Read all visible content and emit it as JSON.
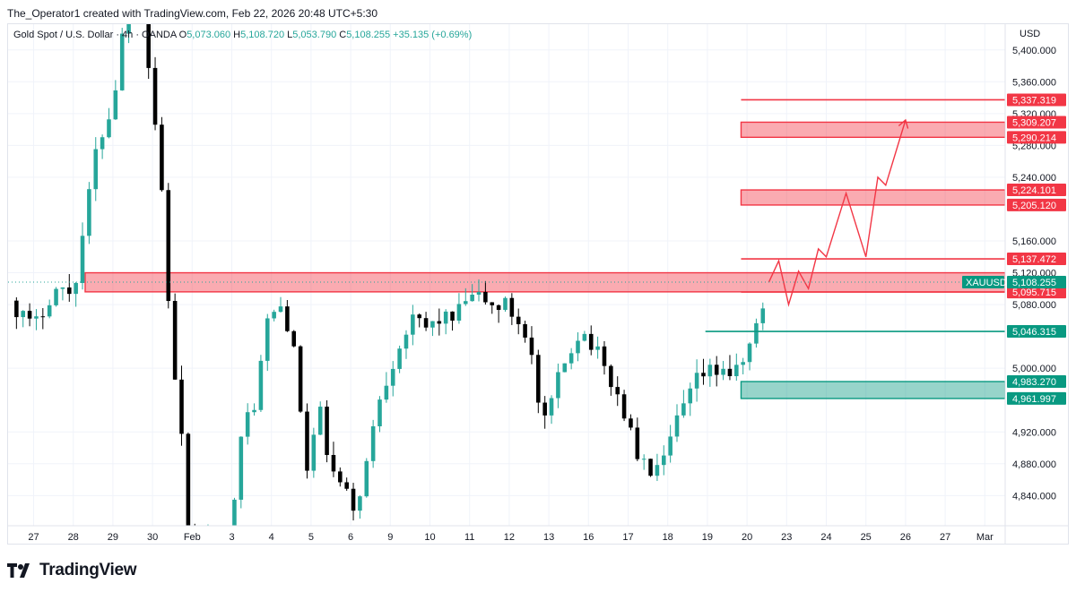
{
  "header": {
    "credit": "The_Operator1 created with TradingView.com, Feb 22, 2026 20:48 UTC+5:30"
  },
  "footer": {
    "logo": "TradingView"
  },
  "colors": {
    "up": "#26a69a",
    "down": "#000000",
    "resistance": "#f23645",
    "support": "#089981",
    "grid": "#f0f3fa",
    "axis_text": "#131722"
  },
  "chart_data": {
    "type": "candlestick",
    "legend": {
      "symbol": "Gold Spot / U.S. Dollar · 4h · OANDA",
      "open_label": "O",
      "open": "5,073.060",
      "high_label": "H",
      "high": "5,108.720",
      "low_label": "L",
      "low": "5,053.790",
      "close_label": "C",
      "close": "5,108.255",
      "change": "+35.135 (+0.69%)"
    },
    "currency_label": "USD",
    "ylim": [
      4810,
      5420
    ],
    "y_ticks": [
      {
        "value": 5400,
        "label": "5,400.000"
      },
      {
        "value": 5360,
        "label": "5,360.000"
      },
      {
        "value": 5320,
        "label": "5,320.000"
      },
      {
        "value": 5280,
        "label": "5,280.000"
      },
      {
        "value": 5240,
        "label": "5,240.000"
      },
      {
        "value": 5160,
        "label": "5,160.000"
      },
      {
        "value": 5120,
        "label": "5,120.000"
      },
      {
        "value": 5080,
        "label": "5,080.000"
      },
      {
        "value": 5000,
        "label": "5,000.000"
      },
      {
        "value": 4920,
        "label": "4,920.000"
      },
      {
        "value": 4880,
        "label": "4,880.000"
      },
      {
        "value": 4840,
        "label": "4,840.000"
      }
    ],
    "x_ticks": [
      {
        "day": 0,
        "label": "27"
      },
      {
        "day": 1,
        "label": "28"
      },
      {
        "day": 2,
        "label": "29"
      },
      {
        "day": 3,
        "label": "30"
      },
      {
        "day": 4,
        "label": "Feb"
      },
      {
        "day": 5,
        "label": "3"
      },
      {
        "day": 6,
        "label": "4"
      },
      {
        "day": 7,
        "label": "5"
      },
      {
        "day": 8,
        "label": "6"
      },
      {
        "day": 9,
        "label": "9"
      },
      {
        "day": 10,
        "label": "10"
      },
      {
        "day": 11,
        "label": "11"
      },
      {
        "day": 12,
        "label": "12"
      },
      {
        "day": 13,
        "label": "13"
      },
      {
        "day": 14,
        "label": "16"
      },
      {
        "day": 15,
        "label": "17"
      },
      {
        "day": 16,
        "label": "18"
      },
      {
        "day": 17,
        "label": "19"
      },
      {
        "day": 18,
        "label": "20"
      },
      {
        "day": 19,
        "label": "23"
      },
      {
        "day": 20,
        "label": "24"
      },
      {
        "day": 21,
        "label": "25"
      },
      {
        "day": 22,
        "label": "26"
      },
      {
        "day": 23,
        "label": "27"
      },
      {
        "day": 24,
        "label": "Mar"
      }
    ],
    "anchors": [
      [
        -0.6,
        5085
      ],
      [
        0.0,
        5050
      ],
      [
        0.5,
        5100
      ],
      [
        1.0,
        5095
      ],
      [
        1.6,
        5280
      ],
      [
        2.0,
        5330
      ],
      [
        2.4,
        5480
      ],
      [
        2.7,
        5620
      ],
      [
        2.9,
        5380
      ],
      [
        3.2,
        5250
      ],
      [
        3.5,
        5010
      ],
      [
        3.8,
        4880
      ],
      [
        4.0,
        4700
      ],
      [
        4.3,
        4800
      ],
      [
        4.7,
        4760
      ],
      [
        5.0,
        4820
      ],
      [
        5.3,
        4930
      ],
      [
        5.6,
        4960
      ],
      [
        5.9,
        5060
      ],
      [
        6.3,
        5080
      ],
      [
        6.6,
        5010
      ],
      [
        6.9,
        4870
      ],
      [
        7.2,
        4950
      ],
      [
        7.5,
        4870
      ],
      [
        7.8,
        4850
      ],
      [
        8.1,
        4820
      ],
      [
        8.4,
        4880
      ],
      [
        8.7,
        4960
      ],
      [
        9.0,
        5000
      ],
      [
        9.3,
        5040
      ],
      [
        9.6,
        5060
      ],
      [
        9.9,
        5050
      ],
      [
        10.3,
        5065
      ],
      [
        10.6,
        5060
      ],
      [
        10.9,
        5085
      ],
      [
        11.3,
        5090
      ],
      [
        11.6,
        5075
      ],
      [
        11.9,
        5080
      ],
      [
        12.2,
        5060
      ],
      [
        12.5,
        5040
      ],
      [
        12.7,
        4960
      ],
      [
        12.9,
        4930
      ],
      [
        13.2,
        4980
      ],
      [
        13.5,
        5020
      ],
      [
        13.8,
        5050
      ],
      [
        14.1,
        5030
      ],
      [
        14.4,
        5000
      ],
      [
        14.7,
        4970
      ],
      [
        15.0,
        4930
      ],
      [
        15.3,
        4880
      ],
      [
        15.6,
        4870
      ],
      [
        15.9,
        4880
      ],
      [
        16.2,
        4930
      ],
      [
        16.5,
        4960
      ],
      [
        16.8,
        4990
      ],
      [
        17.1,
        4995
      ],
      [
        17.4,
        5000
      ],
      [
        17.7,
        4990
      ],
      [
        18.0,
        5020
      ],
      [
        18.3,
        5060
      ],
      [
        18.55,
        5108
      ]
    ],
    "candles_per_day": 6,
    "volatility": 11,
    "levels": [
      {
        "value": 5337.319,
        "label": "5,337.319",
        "kind": "resistance",
        "from_day": 17.85
      },
      {
        "value": 5137.472,
        "label": "5,137.472",
        "kind": "resistance",
        "from_day": 17.85
      },
      {
        "value": 5095.715,
        "label": "5,095.715",
        "kind": "resistance",
        "from_day": 17.85
      },
      {
        "value": 5046.315,
        "label": "5,046.315",
        "kind": "support",
        "from_day": 16.95
      }
    ],
    "zones": [
      {
        "top": 5309.207,
        "bottom": 5290.214,
        "top_label": "5,309.207",
        "bottom_label": "5,290.214",
        "kind": "resistance",
        "from_day": 17.85
      },
      {
        "top": 5224.101,
        "bottom": 5205.12,
        "top_label": "5,224.101",
        "bottom_label": "5,205.120",
        "kind": "resistance",
        "from_day": 17.85
      },
      {
        "top": 5120.0,
        "bottom": 5096.0,
        "kind": "resistance",
        "from_day": 1.3
      },
      {
        "top": 4983.27,
        "bottom": 4961.997,
        "top_label": "4,983.270",
        "bottom_label": "4,961.997",
        "kind": "support",
        "from_day": 17.85
      }
    ],
    "last_price": {
      "value": 5108.255,
      "label": "5,108.255",
      "symbol": "XAUUSD"
    },
    "projection": [
      [
        18.55,
        5108
      ],
      [
        18.8,
        5135
      ],
      [
        19.05,
        5080
      ],
      [
        19.3,
        5122
      ],
      [
        19.55,
        5100
      ],
      [
        19.8,
        5150
      ],
      [
        20.0,
        5140
      ],
      [
        20.5,
        5220
      ],
      [
        21.0,
        5140
      ],
      [
        21.3,
        5240
      ],
      [
        21.5,
        5230
      ],
      [
        22.0,
        5312
      ]
    ]
  }
}
